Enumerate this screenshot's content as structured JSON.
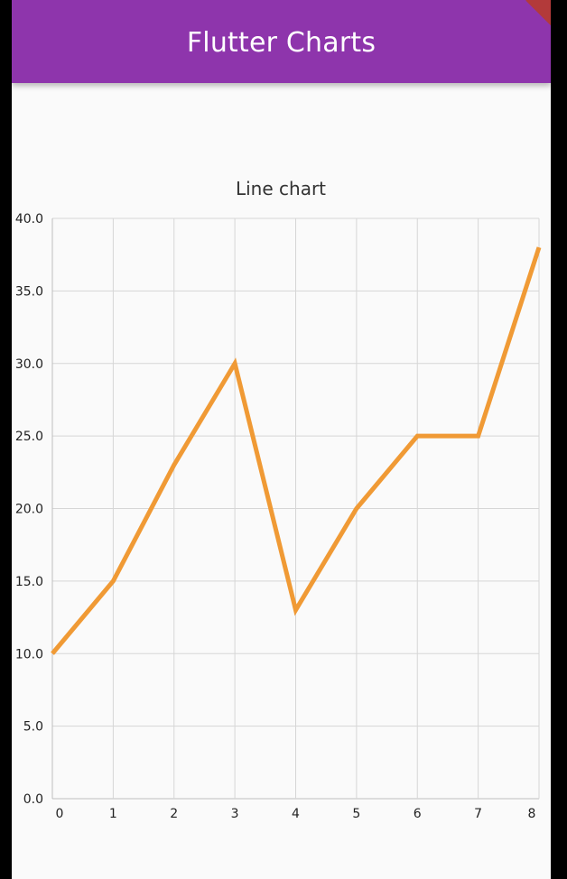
{
  "app_bar": {
    "title": "Flutter Charts",
    "color": "#8e35ac"
  },
  "chart_data": {
    "type": "line",
    "title": "Line chart",
    "xlabel": "",
    "ylabel": "",
    "x": [
      0,
      1,
      2,
      3,
      4,
      5,
      6,
      7,
      8
    ],
    "series": [
      {
        "values": [
          10,
          15,
          23,
          30,
          13,
          20,
          25,
          25,
          38
        ],
        "color": "#f09a35"
      }
    ],
    "xlim": [
      0,
      8
    ],
    "ylim": [
      0,
      40
    ],
    "x_ticks": [
      "0",
      "1",
      "2",
      "3",
      "4",
      "5",
      "6",
      "7",
      "8"
    ],
    "y_ticks": [
      "0.0",
      "5.0",
      "10.0",
      "15.0",
      "20.0",
      "25.0",
      "30.0",
      "35.0",
      "40.0"
    ],
    "grid": true,
    "legend": "none"
  }
}
